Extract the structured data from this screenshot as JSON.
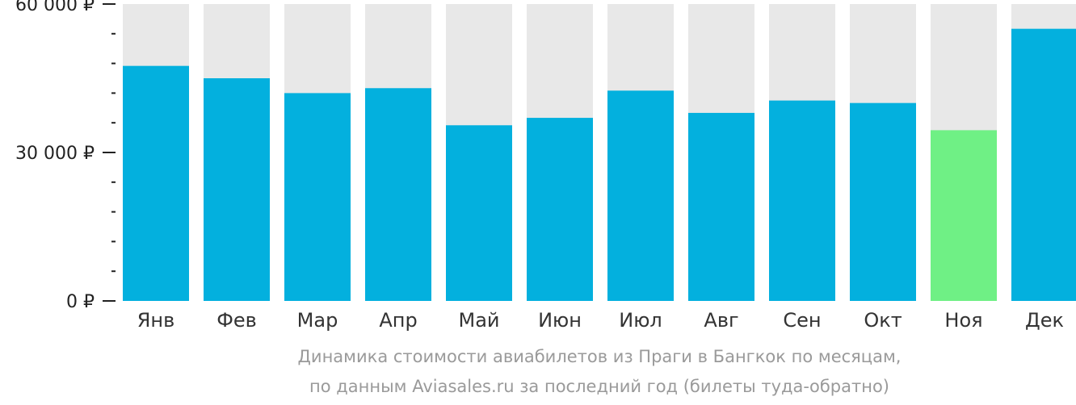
{
  "chart_data": {
    "type": "bar",
    "categories": [
      "Янв",
      "Фев",
      "Мар",
      "Апр",
      "Май",
      "Июн",
      "Июл",
      "Авг",
      "Сен",
      "Окт",
      "Ноя",
      "Дек"
    ],
    "values": [
      47500,
      45000,
      42000,
      43000,
      35500,
      37000,
      42500,
      38000,
      40500,
      40000,
      34500,
      55000
    ],
    "ylim": [
      0,
      60000
    ],
    "yticks": [
      {
        "value": 0,
        "label": "0 ₽"
      },
      {
        "value": 30000,
        "label": "30 000 ₽"
      },
      {
        "value": 60000,
        "label": "60 000 ₽"
      }
    ],
    "minor_tick_step": 6000,
    "highlight_index": 10,
    "colors": {
      "bar": "#03b0de",
      "highlight": "#6ff085",
      "track": "#e8e8e8",
      "axis": "#222222"
    },
    "caption_lines": [
      "Динамика стоимости авиабилетов из Праги в Бангкок по месяцам,",
      "по данным Aviasales.ru за последний год (билеты туда-обратно)"
    ]
  }
}
